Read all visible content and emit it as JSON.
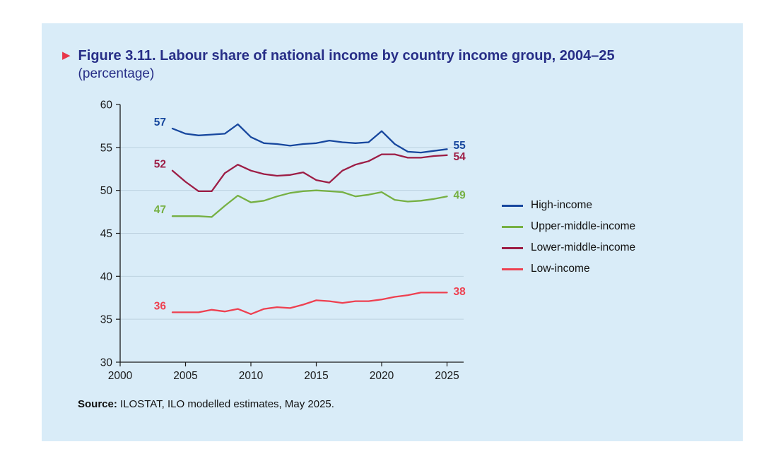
{
  "figure": {
    "marker": "▶",
    "title": "Figure 3.11. Labour share of national income by country income group, 2004–25",
    "subtitle": "(percentage)"
  },
  "source": {
    "label": "Source:",
    "text": " ILOSTAT, ILO modelled estimates, May 2025."
  },
  "chart_data": {
    "type": "line",
    "x": [
      2004,
      2005,
      2006,
      2007,
      2008,
      2009,
      2010,
      2011,
      2012,
      2013,
      2014,
      2015,
      2016,
      2017,
      2018,
      2019,
      2020,
      2021,
      2022,
      2023,
      2024,
      2025
    ],
    "series": [
      {
        "name": "High-income",
        "color": "#17479e",
        "start_label": "57",
        "end_label": "55",
        "values": [
          57.2,
          56.6,
          56.4,
          56.5,
          56.6,
          57.7,
          56.2,
          55.5,
          55.4,
          55.2,
          55.4,
          55.5,
          55.8,
          55.6,
          55.5,
          55.6,
          56.9,
          55.4,
          54.5,
          54.4,
          54.6,
          54.8
        ]
      },
      {
        "name": "Upper-middle-income",
        "color": "#76b043",
        "start_label": "47",
        "end_label": "49",
        "values": [
          47.0,
          47.0,
          47.0,
          46.9,
          48.2,
          49.4,
          48.6,
          48.8,
          49.3,
          49.7,
          49.9,
          50.0,
          49.9,
          49.8,
          49.3,
          49.5,
          49.8,
          48.9,
          48.7,
          48.8,
          49.0,
          49.3
        ]
      },
      {
        "name": "Lower-middle-income",
        "color": "#9d1d45",
        "start_label": "52",
        "end_label": "54",
        "values": [
          52.3,
          51.0,
          49.9,
          49.9,
          52.0,
          53.0,
          52.3,
          51.9,
          51.7,
          51.8,
          52.1,
          51.2,
          50.9,
          52.3,
          53.0,
          53.4,
          54.2,
          54.2,
          53.8,
          53.8,
          54.0,
          54.1
        ]
      },
      {
        "name": "Low-income",
        "color": "#ee4050",
        "start_label": "36",
        "end_label": "38",
        "values": [
          35.8,
          35.8,
          35.8,
          36.1,
          35.9,
          36.2,
          35.6,
          36.2,
          36.4,
          36.3,
          36.7,
          37.2,
          37.1,
          36.9,
          37.1,
          37.1,
          37.3,
          37.6,
          37.8,
          38.1,
          38.1,
          38.1
        ]
      }
    ],
    "title": "Figure 3.11. Labour share of national income by country income group, 2004–25",
    "xlabel": "",
    "ylabel": "",
    "xlim": [
      2000,
      2026
    ],
    "ylim": [
      30,
      60
    ],
    "xticks": [
      2000,
      2005,
      2010,
      2015,
      2020,
      2025
    ],
    "yticks": [
      30,
      35,
      40,
      45,
      50,
      55,
      60
    ],
    "grid": "horizontal",
    "legend_position": "right",
    "axis_color": "#1a1a1a",
    "grid_color": "#bdd2e0",
    "tick_label_color": "#1a1a1a"
  }
}
